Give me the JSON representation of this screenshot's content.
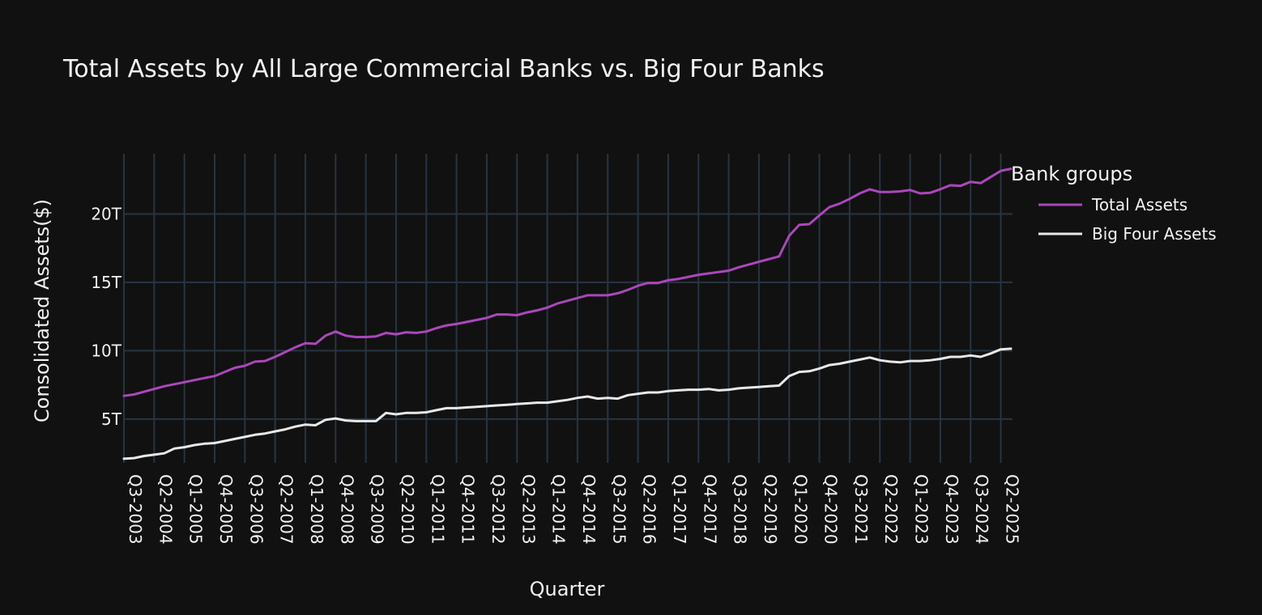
{
  "chart_data": {
    "type": "line",
    "title": "Total Assets by All Large Commercial Banks vs. Big Four Banks",
    "xlabel": "Quarter",
    "ylabel": "Consolidated Assets($)",
    "x": [
      "Q3-2003",
      "Q4-2003",
      "Q1-2004",
      "Q2-2004",
      "Q3-2004",
      "Q4-2004",
      "Q1-2005",
      "Q2-2005",
      "Q3-2005",
      "Q4-2005",
      "Q1-2006",
      "Q2-2006",
      "Q3-2006",
      "Q4-2006",
      "Q1-2007",
      "Q2-2007",
      "Q3-2007",
      "Q4-2007",
      "Q1-2008",
      "Q2-2008",
      "Q3-2008",
      "Q4-2008",
      "Q1-2009",
      "Q2-2009",
      "Q3-2009",
      "Q4-2009",
      "Q1-2010",
      "Q2-2010",
      "Q3-2010",
      "Q4-2010",
      "Q1-2011",
      "Q2-2011",
      "Q3-2011",
      "Q4-2011",
      "Q1-2012",
      "Q2-2012",
      "Q3-2012",
      "Q4-2012",
      "Q1-2013",
      "Q2-2013",
      "Q3-2013",
      "Q4-2013",
      "Q1-2014",
      "Q2-2014",
      "Q3-2014",
      "Q4-2014",
      "Q1-2015",
      "Q2-2015",
      "Q3-2015",
      "Q4-2015",
      "Q1-2016",
      "Q2-2016",
      "Q3-2016",
      "Q4-2016",
      "Q1-2017",
      "Q2-2017",
      "Q3-2017",
      "Q4-2017",
      "Q1-2018",
      "Q2-2018",
      "Q3-2018",
      "Q4-2018",
      "Q1-2019",
      "Q2-2019",
      "Q3-2019",
      "Q4-2019",
      "Q1-2020",
      "Q2-2020",
      "Q3-2020",
      "Q4-2020",
      "Q1-2021",
      "Q2-2021",
      "Q3-2021",
      "Q4-2021",
      "Q1-2022",
      "Q2-2022",
      "Q3-2022",
      "Q4-2022",
      "Q1-2023",
      "Q2-2023",
      "Q3-2023",
      "Q4-2023",
      "Q1-2024",
      "Q2-2024",
      "Q3-2024",
      "Q4-2024",
      "Q1-2025",
      "Q2-2025",
      "Q3-2025"
    ],
    "tick_labels": [
      "Q3-2003",
      "Q2-2004",
      "Q1-2005",
      "Q4-2005",
      "Q3-2006",
      "Q2-2007",
      "Q1-2008",
      "Q4-2008",
      "Q3-2009",
      "Q2-2010",
      "Q1-2011",
      "Q4-2011",
      "Q3-2012",
      "Q2-2013",
      "Q1-2014",
      "Q4-2014",
      "Q3-2015",
      "Q2-2016",
      "Q1-2017",
      "Q4-2017",
      "Q3-2018",
      "Q2-2019",
      "Q1-2020",
      "Q4-2020",
      "Q3-2021",
      "Q2-2022",
      "Q1-2023",
      "Q4-2023",
      "Q3-2024",
      "Q2-2025"
    ],
    "y_ticks": [
      5000000000000,
      10000000000000,
      15000000000000,
      20000000000000
    ],
    "y_tick_labels": [
      "5T",
      "10T",
      "15T",
      "20T"
    ],
    "ylim": [
      1800000000000,
      24400000000000
    ],
    "grid": true,
    "legend_title": "Bank groups",
    "legend_position": "right",
    "series": [
      {
        "name": "Total Assets",
        "color": "#ab47bc",
        "values": [
          6.7,
          6.8,
          7.0,
          7.2,
          7.4,
          7.55,
          7.7,
          7.85,
          8.0,
          8.15,
          8.45,
          8.75,
          8.9,
          9.2,
          9.25,
          9.55,
          9.9,
          10.25,
          10.55,
          10.5,
          11.1,
          11.4,
          11.1,
          11.0,
          11.0,
          11.05,
          11.3,
          11.2,
          11.35,
          11.3,
          11.4,
          11.65,
          11.85,
          11.95,
          12.1,
          12.25,
          12.4,
          12.65,
          12.65,
          12.6,
          12.8,
          12.95,
          13.15,
          13.45,
          13.65,
          13.85,
          14.05,
          14.05,
          14.05,
          14.2,
          14.45,
          14.75,
          14.95,
          14.95,
          15.15,
          15.25,
          15.4,
          15.55,
          15.65,
          15.75,
          15.85,
          16.1,
          16.3,
          16.5,
          16.7,
          16.9,
          18.4,
          19.2,
          19.25,
          19.9,
          20.5,
          20.75,
          21.1,
          21.5,
          21.8,
          21.6,
          21.6,
          21.65,
          21.75,
          21.5,
          21.55,
          21.8,
          22.1,
          22.05,
          22.35,
          22.25,
          22.7,
          23.15,
          23.3
        ]
      },
      {
        "name": "Big Four Assets",
        "color": "#e8e8e8",
        "values": [
          2.1,
          2.15,
          2.3,
          2.4,
          2.5,
          2.85,
          2.95,
          3.1,
          3.2,
          3.25,
          3.4,
          3.55,
          3.7,
          3.85,
          3.95,
          4.1,
          4.25,
          4.45,
          4.6,
          4.55,
          4.95,
          5.05,
          4.9,
          4.85,
          4.85,
          4.85,
          5.45,
          5.35,
          5.45,
          5.45,
          5.5,
          5.65,
          5.8,
          5.8,
          5.85,
          5.9,
          5.95,
          6.0,
          6.05,
          6.1,
          6.15,
          6.2,
          6.2,
          6.3,
          6.4,
          6.55,
          6.65,
          6.5,
          6.55,
          6.5,
          6.75,
          6.85,
          6.95,
          6.95,
          7.05,
          7.1,
          7.15,
          7.15,
          7.2,
          7.1,
          7.15,
          7.25,
          7.3,
          7.35,
          7.4,
          7.45,
          8.15,
          8.45,
          8.5,
          8.7,
          8.95,
          9.05,
          9.2,
          9.35,
          9.5,
          9.3,
          9.2,
          9.15,
          9.25,
          9.25,
          9.3,
          9.4,
          9.55,
          9.55,
          9.65,
          9.55,
          9.8,
          10.1,
          10.15
        ]
      }
    ]
  }
}
